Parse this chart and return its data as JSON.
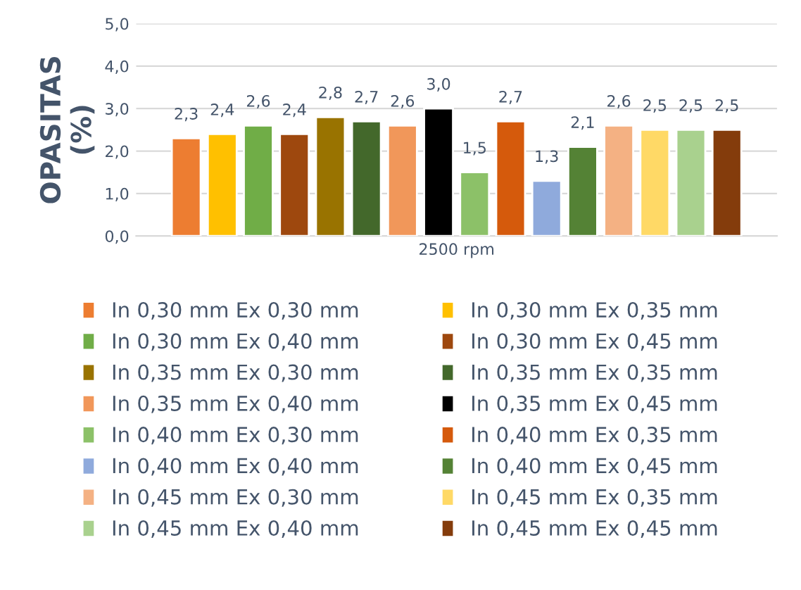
{
  "chart_data": {
    "type": "bar",
    "ylabel": "OPASITAS (%)",
    "categories": [
      "2500 rpm"
    ],
    "ylim": [
      0,
      5
    ],
    "yticks": [
      {
        "value": 0,
        "label": "0,0"
      },
      {
        "value": 1,
        "label": "1,0"
      },
      {
        "value": 2,
        "label": "2,0"
      },
      {
        "value": 3,
        "label": "3,0"
      },
      {
        "value": 4,
        "label": "4,0"
      },
      {
        "value": 5,
        "label": "5,0"
      }
    ],
    "grid": "y",
    "legend": "bottom",
    "series": [
      {
        "name": "In 0,30 mm Ex 0,30 mm",
        "color": "#ed7d31",
        "values": [
          2.3
        ],
        "value_labels": [
          "2,3"
        ]
      },
      {
        "name": "In 0,30 mm Ex 0,35 mm",
        "color": "#ffc000",
        "values": [
          2.4
        ],
        "value_labels": [
          "2,4"
        ]
      },
      {
        "name": "In 0,30 mm Ex 0,40 mm",
        "color": "#70ad47",
        "values": [
          2.6
        ],
        "value_labels": [
          "2,6"
        ]
      },
      {
        "name": "In 0,30 mm Ex 0,45 mm",
        "color": "#9e480e",
        "values": [
          2.4
        ],
        "value_labels": [
          "2,4"
        ]
      },
      {
        "name": "In 0,35 mm Ex 0,30 mm",
        "color": "#997300",
        "values": [
          2.8
        ],
        "value_labels": [
          "2,8"
        ]
      },
      {
        "name": "In 0,35 mm Ex 0,35 mm",
        "color": "#43682b",
        "values": [
          2.7
        ],
        "value_labels": [
          "2,7"
        ]
      },
      {
        "name": "In 0,35 mm Ex 0,40 mm",
        "color": "#f1975a",
        "values": [
          2.6
        ],
        "value_labels": [
          "2,6"
        ]
      },
      {
        "name": "In 0,35 mm Ex 0,45 mm",
        "color": "#000000",
        "values": [
          3.0
        ],
        "value_labels": [
          "3,0"
        ]
      },
      {
        "name": "In 0,40 mm Ex 0,30 mm",
        "color": "#8cc168",
        "values": [
          1.5
        ],
        "value_labels": [
          "1,5"
        ]
      },
      {
        "name": "In 0,40 mm Ex 0,35 mm",
        "color": "#d55a0c",
        "values": [
          2.7
        ],
        "value_labels": [
          "2,7"
        ]
      },
      {
        "name": "In 0,40 mm Ex 0,40 mm",
        "color": "#8faadc",
        "values": [
          1.3
        ],
        "value_labels": [
          "1,3"
        ]
      },
      {
        "name": "In 0,40 mm Ex 0,45 mm",
        "color": "#548235",
        "values": [
          2.1
        ],
        "value_labels": [
          "2,1"
        ]
      },
      {
        "name": "In 0,45 mm Ex 0,30 mm",
        "color": "#f4b183",
        "values": [
          2.6
        ],
        "value_labels": [
          "2,6"
        ]
      },
      {
        "name": "In 0,45 mm Ex 0,35 mm",
        "color": "#ffd966",
        "values": [
          2.5
        ],
        "value_labels": [
          "2,5"
        ]
      },
      {
        "name": "In 0,45 mm Ex 0,40 mm",
        "color": "#a9d18e",
        "values": [
          2.5
        ],
        "value_labels": [
          "2,5"
        ]
      },
      {
        "name": "In 0,45 mm Ex 0,45 mm",
        "color": "#843c0c",
        "values": [
          2.5
        ],
        "value_labels": [
          "2,5"
        ]
      }
    ]
  }
}
